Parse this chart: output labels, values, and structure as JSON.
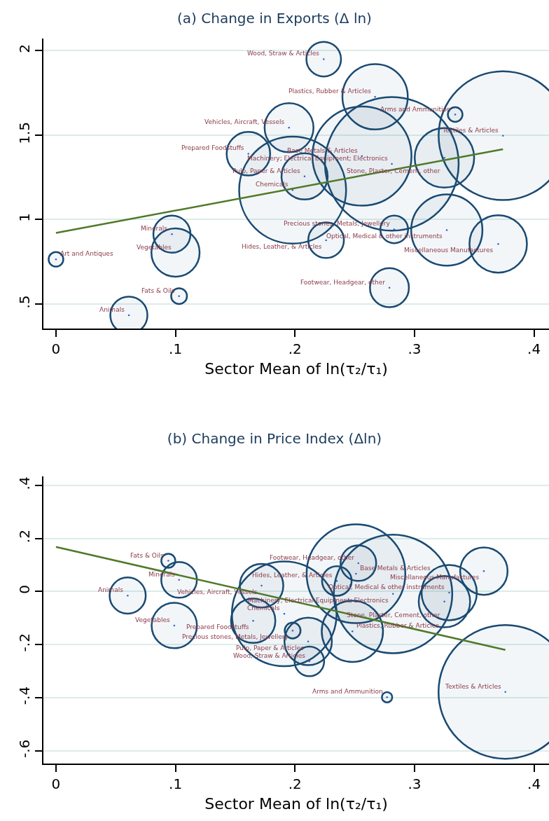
{
  "chart_data": [
    {
      "type": "bubble",
      "title": "(a) Change in Exports (Δ ln)",
      "xlabel": "Sector Mean of ln(τ₂/τ₁)",
      "xlim": [
        -0.0105,
        0.4125
      ],
      "ylim": [
        0.355,
        2.072
      ],
      "xticks": [
        0,
        {
          "value": 0.1,
          "label": ".1"
        },
        {
          "value": 0.2,
          "label": ".2"
        },
        {
          "value": 0.3,
          "label": ".3"
        },
        {
          "value": 0.4,
          "label": ".4"
        }
      ],
      "yticks": [
        {
          "value": 0.5,
          "label": ".5"
        },
        1,
        1.5,
        2
      ],
      "grid": "y",
      "marker": "circle",
      "series": [
        {
          "type": "bubble",
          "color": "#1a4a72",
          "x": [
            0,
            0.061,
            0.103,
            0.097,
            0.1,
            0.161,
            0.195,
            0.208,
            0.198,
            0.224,
            0.267,
            0.334,
            0.374,
            0.256,
            0.281,
            0.325,
            0.283,
            0.327,
            0.226,
            0.37,
            0.279
          ],
          "values": [
            0.765,
            0.434,
            0.547,
            0.914,
            0.805,
            1.39,
            1.544,
            1.256,
            1.175,
            1.95,
            1.727,
            1.622,
            1.497,
            1.376,
            1.33,
            1.366,
            0.942,
            0.938,
            0.878,
            0.856,
            0.597
          ],
          "sizes": [
            0.012,
            0.077,
            0.014,
            0.077,
            0.13,
            0.106,
            0.134,
            0.119,
            0.64,
            0.067,
            0.239,
            0.012,
            0.927,
            0.549,
            1,
            0.198,
            0.043,
            0.284,
            0.071,
            0.185,
            0.085
          ]
        },
        {
          "type": "line",
          "color": "#4f7a28",
          "marker": "none",
          "x": [
            0,
            0.374
          ],
          "values": [
            0.921,
            1.417
          ]
        }
      ],
      "annotations": [
        {
          "text": "Art and Antiques",
          "x": 0,
          "y": 0.765
        },
        {
          "text": "Animals",
          "x": 0.061,
          "y": 0.434
        },
        {
          "text": "Fats & Oils",
          "x": 0.103,
          "y": 0.547
        },
        {
          "text": "Minerals",
          "x": 0.097,
          "y": 0.914
        },
        {
          "text": "Vegetables",
          "x": 0.1,
          "y": 0.805
        },
        {
          "text": "Prepared Foodstuffs",
          "x": 0.161,
          "y": 1.39
        },
        {
          "text": "Vehicles, Aircraft, Vessels",
          "x": 0.195,
          "y": 1.544
        },
        {
          "text": "Pulp, Paper & Articles",
          "x": 0.208,
          "y": 1.256
        },
        {
          "text": "Chemicals",
          "x": 0.198,
          "y": 1.175
        },
        {
          "text": "Wood, Straw & Articles",
          "x": 0.224,
          "y": 1.95
        },
        {
          "text": "Plastics, Rubber & Articles",
          "x": 0.267,
          "y": 1.727
        },
        {
          "text": "Arms and Ammunition",
          "x": 0.334,
          "y": 1.622
        },
        {
          "text": "Textiles & Articles",
          "x": 0.374,
          "y": 1.497
        },
        {
          "text": "Base Metals & Articles",
          "x": 0.256,
          "y": 1.376
        },
        {
          "text": "Machinery; Electrical Equipment; Electronics",
          "x": 0.281,
          "y": 1.33
        },
        {
          "text": "Stone, Plaster, Cement, other",
          "x": 0.325,
          "y": 1.366
        },
        {
          "text": "Precious stones, Metals, Jewellery",
          "x": 0.283,
          "y": 0.942
        },
        {
          "text": "Optical, Medical & other instruments",
          "x": 0.327,
          "y": 0.938
        },
        {
          "text": "Hides, Leather, & Articles",
          "x": 0.226,
          "y": 0.878
        },
        {
          "text": "Miscellaneous Manufactures",
          "x": 0.37,
          "y": 0.856
        },
        {
          "text": "Footwear, Headgear, other",
          "x": 0.279,
          "y": 0.597
        }
      ]
    },
    {
      "type": "bubble",
      "title": "(b) Change in Price Index (Δln)",
      "xlabel": "Sector Mean of ln(τ₂/τ₁)",
      "xlim": [
        -0.0105,
        0.4125
      ],
      "ylim": [
        -0.648,
        0.434
      ],
      "xticks": [
        0,
        {
          "value": 0.1,
          "label": ".1"
        },
        {
          "value": 0.2,
          "label": ".2"
        },
        {
          "value": 0.3,
          "label": ".3"
        },
        {
          "value": 0.4,
          "label": ".4"
        }
      ],
      "yticks": [
        {
          "value": -0.6,
          "label": "-.6"
        },
        {
          "value": -0.4,
          "label": "-.4"
        },
        {
          "value": -0.2,
          "label": "-.2"
        },
        0,
        {
          "value": 0.2,
          "label": ".2"
        },
        {
          "value": 0.4,
          "label": ".4"
        }
      ],
      "grid": "y",
      "marker": "circle",
      "series": [
        {
          "type": "bubble",
          "color": "#1a4a72",
          "x": [
            0.094,
            0.06,
            0.103,
            0.172,
            0.235,
            0.251,
            0.253,
            0.282,
            0.329,
            0.325,
            0.358,
            0.191,
            0.165,
            0.198,
            0.248,
            0.211,
            0.212,
            0.099,
            0.277,
            0.376
          ],
          "values": [
            0.116,
            -0.015,
            0.044,
            0.022,
            0.04,
            0.067,
            0.107,
            -0.009,
            -0.004,
            -0.038,
            0.077,
            -0.084,
            -0.11,
            -0.147,
            -0.15,
            -0.188,
            -0.263,
            -0.128,
            -0.398,
            -0.378
          ],
          "sizes": [
            0.011,
            0.073,
            0.071,
            0.106,
            0.049,
            0.545,
            0.071,
            0.785,
            0.171,
            0.148,
            0.126,
            0.613,
            0.11,
            0.014,
            0.21,
            0.126,
            0.049,
            0.115,
            0.006,
            1
          ]
        },
        {
          "type": "line",
          "color": "#4f7a28",
          "marker": "none",
          "x": [
            0,
            0.376
          ],
          "values": [
            0.168,
            -0.22
          ]
        }
      ],
      "annotations": [
        {
          "text": "Fats & Oils",
          "x": 0.094,
          "y": 0.116
        },
        {
          "text": "Animals",
          "x": 0.06,
          "y": -0.015
        },
        {
          "text": "Minerals",
          "x": 0.103,
          "y": 0.044
        },
        {
          "text": "Vehicles, Aircraft, Vessels",
          "x": 0.172,
          "y": 0.022
        },
        {
          "text": "Hides, Leather, & Articles",
          "x": 0.235,
          "y": 0.04
        },
        {
          "text": "Base Metals & Articles",
          "x": 0.251,
          "y": 0.067
        },
        {
          "text": "Footwear, Headgear, other",
          "x": 0.253,
          "y": 0.107
        },
        {
          "text": "Machinery; Electrical Equipment; Electronics",
          "x": 0.282,
          "y": -0.009
        },
        {
          "text": "Optical, Medical & other instruments",
          "x": 0.329,
          "y": -0.004
        },
        {
          "text": "Stone, Plaster, Cement, other",
          "x": 0.325,
          "y": -0.038
        },
        {
          "text": "Miscellaneous Manufactures",
          "x": 0.358,
          "y": 0.077
        },
        {
          "text": "Chemicals",
          "x": 0.191,
          "y": -0.084
        },
        {
          "text": "Prepared Foodstuffs",
          "x": 0.165,
          "y": -0.11
        },
        {
          "text": "Precious stones, Metals, Jewellery",
          "x": 0.198,
          "y": -0.147
        },
        {
          "text": "Plastics, Rubber & Articles",
          "x": 0.248,
          "y": -0.15
        },
        {
          "text": "Pulp, Paper & Articles",
          "x": 0.211,
          "y": -0.188
        },
        {
          "text": "Wood, Straw & Articles",
          "x": 0.212,
          "y": -0.263
        },
        {
          "text": "Vegetables",
          "x": 0.099,
          "y": -0.128
        },
        {
          "text": "Arms and Ammunition",
          "x": 0.277,
          "y": -0.398
        },
        {
          "text": "Textiles & Articles",
          "x": 0.376,
          "y": -0.378
        }
      ]
    }
  ]
}
